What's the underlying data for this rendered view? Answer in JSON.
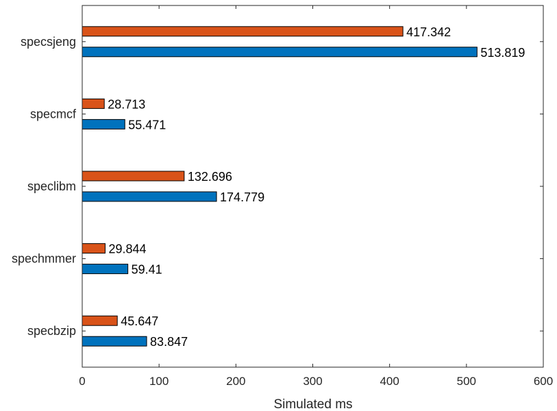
{
  "chart_data": {
    "type": "bar",
    "orientation": "horizontal",
    "categories": [
      "specbzip",
      "spechmmer",
      "speclibm",
      "specmcf",
      "specsjeng"
    ],
    "series": [
      {
        "values": [
          83.847,
          59.41,
          174.779,
          55.471,
          513.819
        ],
        "labels": [
          "83.847",
          "59.41",
          "174.779",
          "55.471",
          "513.819"
        ],
        "color": "#0072BD"
      },
      {
        "values": [
          45.647,
          29.844,
          132.696,
          28.713,
          417.342
        ],
        "labels": [
          "45.647",
          "29.844",
          "132.696",
          "28.713",
          "417.342"
        ],
        "color": "#D95319"
      }
    ],
    "xlabel": "Simulated ms",
    "xlim": [
      0,
      600
    ],
    "xticks": [
      "0",
      "100",
      "200",
      "300",
      "400",
      "500",
      "600"
    ],
    "grid": false,
    "legend": "none"
  }
}
